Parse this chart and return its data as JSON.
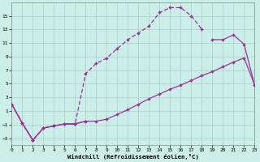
{
  "xlabel": "Windchill (Refroidissement éolien,°C)",
  "bg_color": "#cceee8",
  "grid_color": "#aacccc",
  "line_color": "#993399",
  "xlim": [
    0,
    23
  ],
  "ylim": [
    -4,
    17
  ],
  "xticks": [
    0,
    1,
    2,
    3,
    4,
    5,
    6,
    7,
    8,
    9,
    10,
    11,
    12,
    13,
    14,
    15,
    16,
    17,
    18,
    19,
    20,
    21,
    22,
    23
  ],
  "yticks": [
    -3,
    -1,
    1,
    3,
    5,
    7,
    9,
    11,
    13,
    15
  ],
  "line1_x": [
    0,
    1,
    2,
    3,
    4,
    5,
    6,
    7,
    8,
    9,
    10,
    11,
    12,
    13,
    14,
    15,
    16,
    17,
    18,
    19,
    20,
    21,
    22,
    23
  ],
  "line1_y": [
    2.0,
    -0.8,
    -3.3,
    -1.5,
    -1.2,
    -0.9,
    -0.9,
    -0.5,
    -0.5,
    -0.2,
    0.5,
    1.2,
    2.0,
    2.8,
    3.5,
    4.2,
    4.8,
    5.5,
    6.2,
    6.8,
    7.5,
    8.2,
    8.8,
    4.8
  ],
  "line2_x": [
    0,
    1,
    2,
    3,
    4,
    5,
    6,
    7,
    8,
    9,
    10,
    11,
    12,
    13,
    14,
    15,
    16,
    17,
    18,
    19,
    20,
    21,
    22,
    23
  ],
  "line2_y": [
    2.0,
    -0.8,
    -3.3,
    -1.5,
    -1.2,
    -0.9,
    -0.9,
    6.5,
    8.0,
    8.8,
    10.2,
    11.5,
    12.5,
    13.5,
    15.5,
    16.2,
    16.2,
    15.0,
    13.0,
    null,
    null,
    null,
    null,
    null
  ],
  "line3_x": [
    0,
    1,
    2,
    3,
    4,
    5,
    6,
    7,
    8,
    9,
    10,
    11,
    12,
    13,
    14,
    15,
    16,
    17,
    18,
    19,
    20,
    21,
    22,
    23
  ],
  "line3_y": [
    2.0,
    -0.8,
    -3.3,
    -1.5,
    -1.2,
    -0.9,
    -0.9,
    -0.5,
    null,
    null,
    null,
    null,
    null,
    null,
    null,
    null,
    null,
    null,
    null,
    11.5,
    11.5,
    12.2,
    10.8,
    4.8
  ]
}
